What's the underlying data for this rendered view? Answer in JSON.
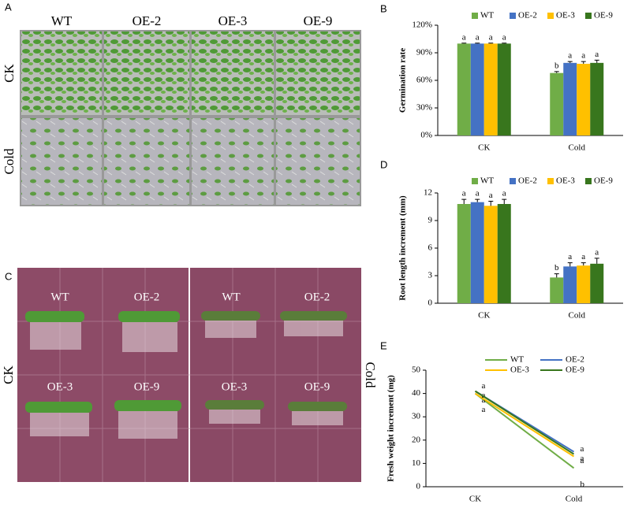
{
  "panels": {
    "A": {
      "letter": "A",
      "columns": [
        "WT",
        "OE-2",
        "OE-3",
        "OE-9"
      ],
      "rows": [
        "CK",
        "Cold"
      ]
    },
    "C": {
      "letter": "C",
      "plates": [
        "WT",
        "OE-2",
        "OE-3",
        "OE-9"
      ],
      "rows": [
        "CK",
        "Cold"
      ]
    }
  },
  "chart_data": [
    {
      "type": "bar",
      "panel": "B",
      "ylabel": "Germination rate",
      "categories": [
        "CK",
        "Cold"
      ],
      "ylim": [
        0,
        120
      ],
      "yticks": [
        {
          "value": 0,
          "label": "0%"
        },
        {
          "value": 30,
          "label": "30%"
        },
        {
          "value": 60,
          "label": "60%"
        },
        {
          "value": 90,
          "label": "90%"
        },
        {
          "value": 120,
          "label": "120%"
        }
      ],
      "series": [
        {
          "name": "WT",
          "color": "#70ad47",
          "values": [
            100,
            68
          ],
          "errors": [
            0.5,
            1.5
          ],
          "labels": [
            "a",
            "b"
          ]
        },
        {
          "name": "OE-2",
          "color": "#4472c4",
          "values": [
            100,
            79
          ],
          "errors": [
            0.5,
            1.5
          ],
          "labels": [
            "a",
            "a"
          ]
        },
        {
          "name": "OE-3",
          "color": "#ffc000",
          "values": [
            100,
            78
          ],
          "errors": [
            0.5,
            2.5
          ],
          "labels": [
            "a",
            "a"
          ]
        },
        {
          "name": "OE-9",
          "color": "#38761d",
          "values": [
            100,
            79
          ],
          "errors": [
            0.5,
            3
          ],
          "labels": [
            "a",
            "a"
          ]
        }
      ]
    },
    {
      "type": "bar",
      "panel": "D",
      "ylabel": "Root length increment (mm)",
      "categories": [
        "CK",
        "Cold"
      ],
      "ylim": [
        0,
        12
      ],
      "yticks": [
        0,
        3,
        6,
        9,
        12
      ],
      "series": [
        {
          "name": "WT",
          "color": "#70ad47",
          "values": [
            10.8,
            2.8
          ],
          "errors": [
            0.5,
            0.4
          ],
          "labels": [
            "a",
            "b"
          ]
        },
        {
          "name": "OE-2",
          "color": "#4472c4",
          "values": [
            11.0,
            4.0
          ],
          "errors": [
            0.3,
            0.4
          ],
          "labels": [
            "a",
            "a"
          ]
        },
        {
          "name": "OE-3",
          "color": "#ffc000",
          "values": [
            10.6,
            4.1
          ],
          "errors": [
            0.5,
            0.3
          ],
          "labels": [
            "a",
            "a"
          ]
        },
        {
          "name": "OE-9",
          "color": "#38761d",
          "values": [
            10.8,
            4.3
          ],
          "errors": [
            0.5,
            0.6
          ],
          "labels": [
            "a",
            "a"
          ]
        }
      ]
    },
    {
      "type": "line",
      "panel": "E",
      "ylabel": "Fresh weight increment (mg)",
      "categories": [
        "CK",
        "Cold"
      ],
      "ylim": [
        0,
        50
      ],
      "yticks": [
        0,
        10,
        20,
        30,
        40,
        50
      ],
      "series": [
        {
          "name": "WT",
          "color": "#70ad47",
          "values": [
            40,
            8
          ],
          "labels": [
            "a",
            "b"
          ]
        },
        {
          "name": "OE-2",
          "color": "#4472c4",
          "values": [
            41,
            15
          ],
          "labels": [
            "a",
            "a"
          ]
        },
        {
          "name": "OE-3",
          "color": "#ffc000",
          "values": [
            40,
            13
          ],
          "labels": [
            "a",
            "a"
          ]
        },
        {
          "name": "OE-9",
          "color": "#38761d",
          "values": [
            41,
            14
          ],
          "labels": [
            "a",
            "a"
          ]
        }
      ]
    }
  ]
}
